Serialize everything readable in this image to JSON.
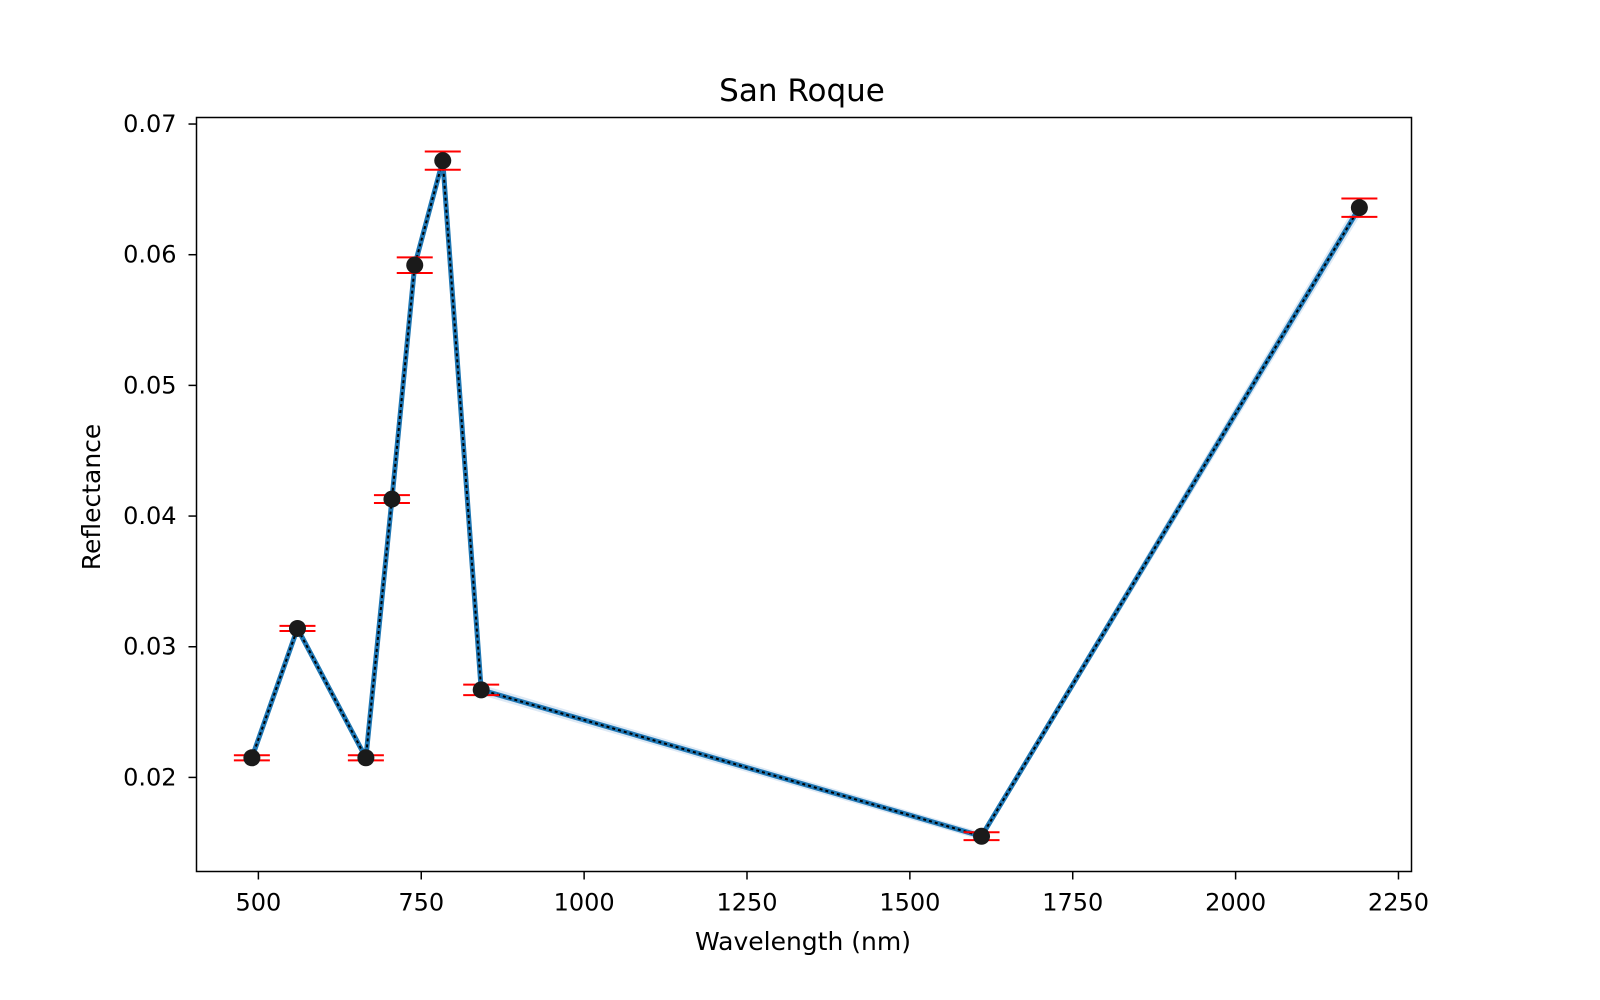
{
  "chart_data": {
    "type": "line",
    "title": "San Roque",
    "xlabel": "Wavelength (nm)",
    "ylabel": "Reflectance",
    "xlim": [
      405,
      2270
    ],
    "ylim": [
      0.0128,
      0.0705
    ],
    "xticks": [
      500,
      750,
      1000,
      1250,
      1500,
      1750,
      2000,
      2250
    ],
    "xtick_labels": [
      "500",
      "750",
      "1000",
      "1250",
      "1500",
      "1750",
      "2000",
      "2250"
    ],
    "yticks": [
      0.02,
      0.03,
      0.04,
      0.05,
      0.06,
      0.07
    ],
    "ytick_labels": [
      "0.02",
      "0.03",
      "0.04",
      "0.05",
      "0.06",
      "0.07"
    ],
    "grid": false,
    "series": [
      {
        "x": [
          490,
          560,
          665,
          705,
          740,
          783,
          842,
          1610,
          2190
        ],
        "values": [
          0.0215,
          0.0314,
          0.0215,
          0.0413,
          0.0592,
          0.0672,
          0.0267,
          0.0155,
          0.0636
        ],
        "error": [
          0.0002,
          0.0002,
          0.0002,
          0.0003,
          0.0006,
          0.0007,
          0.0004,
          0.0003,
          0.0007
        ],
        "line_color": "#1f77b4",
        "marker_color": "#1a1a1a",
        "errorbar_color": "#ff0000",
        "band_color": "#c6dbef"
      }
    ]
  }
}
